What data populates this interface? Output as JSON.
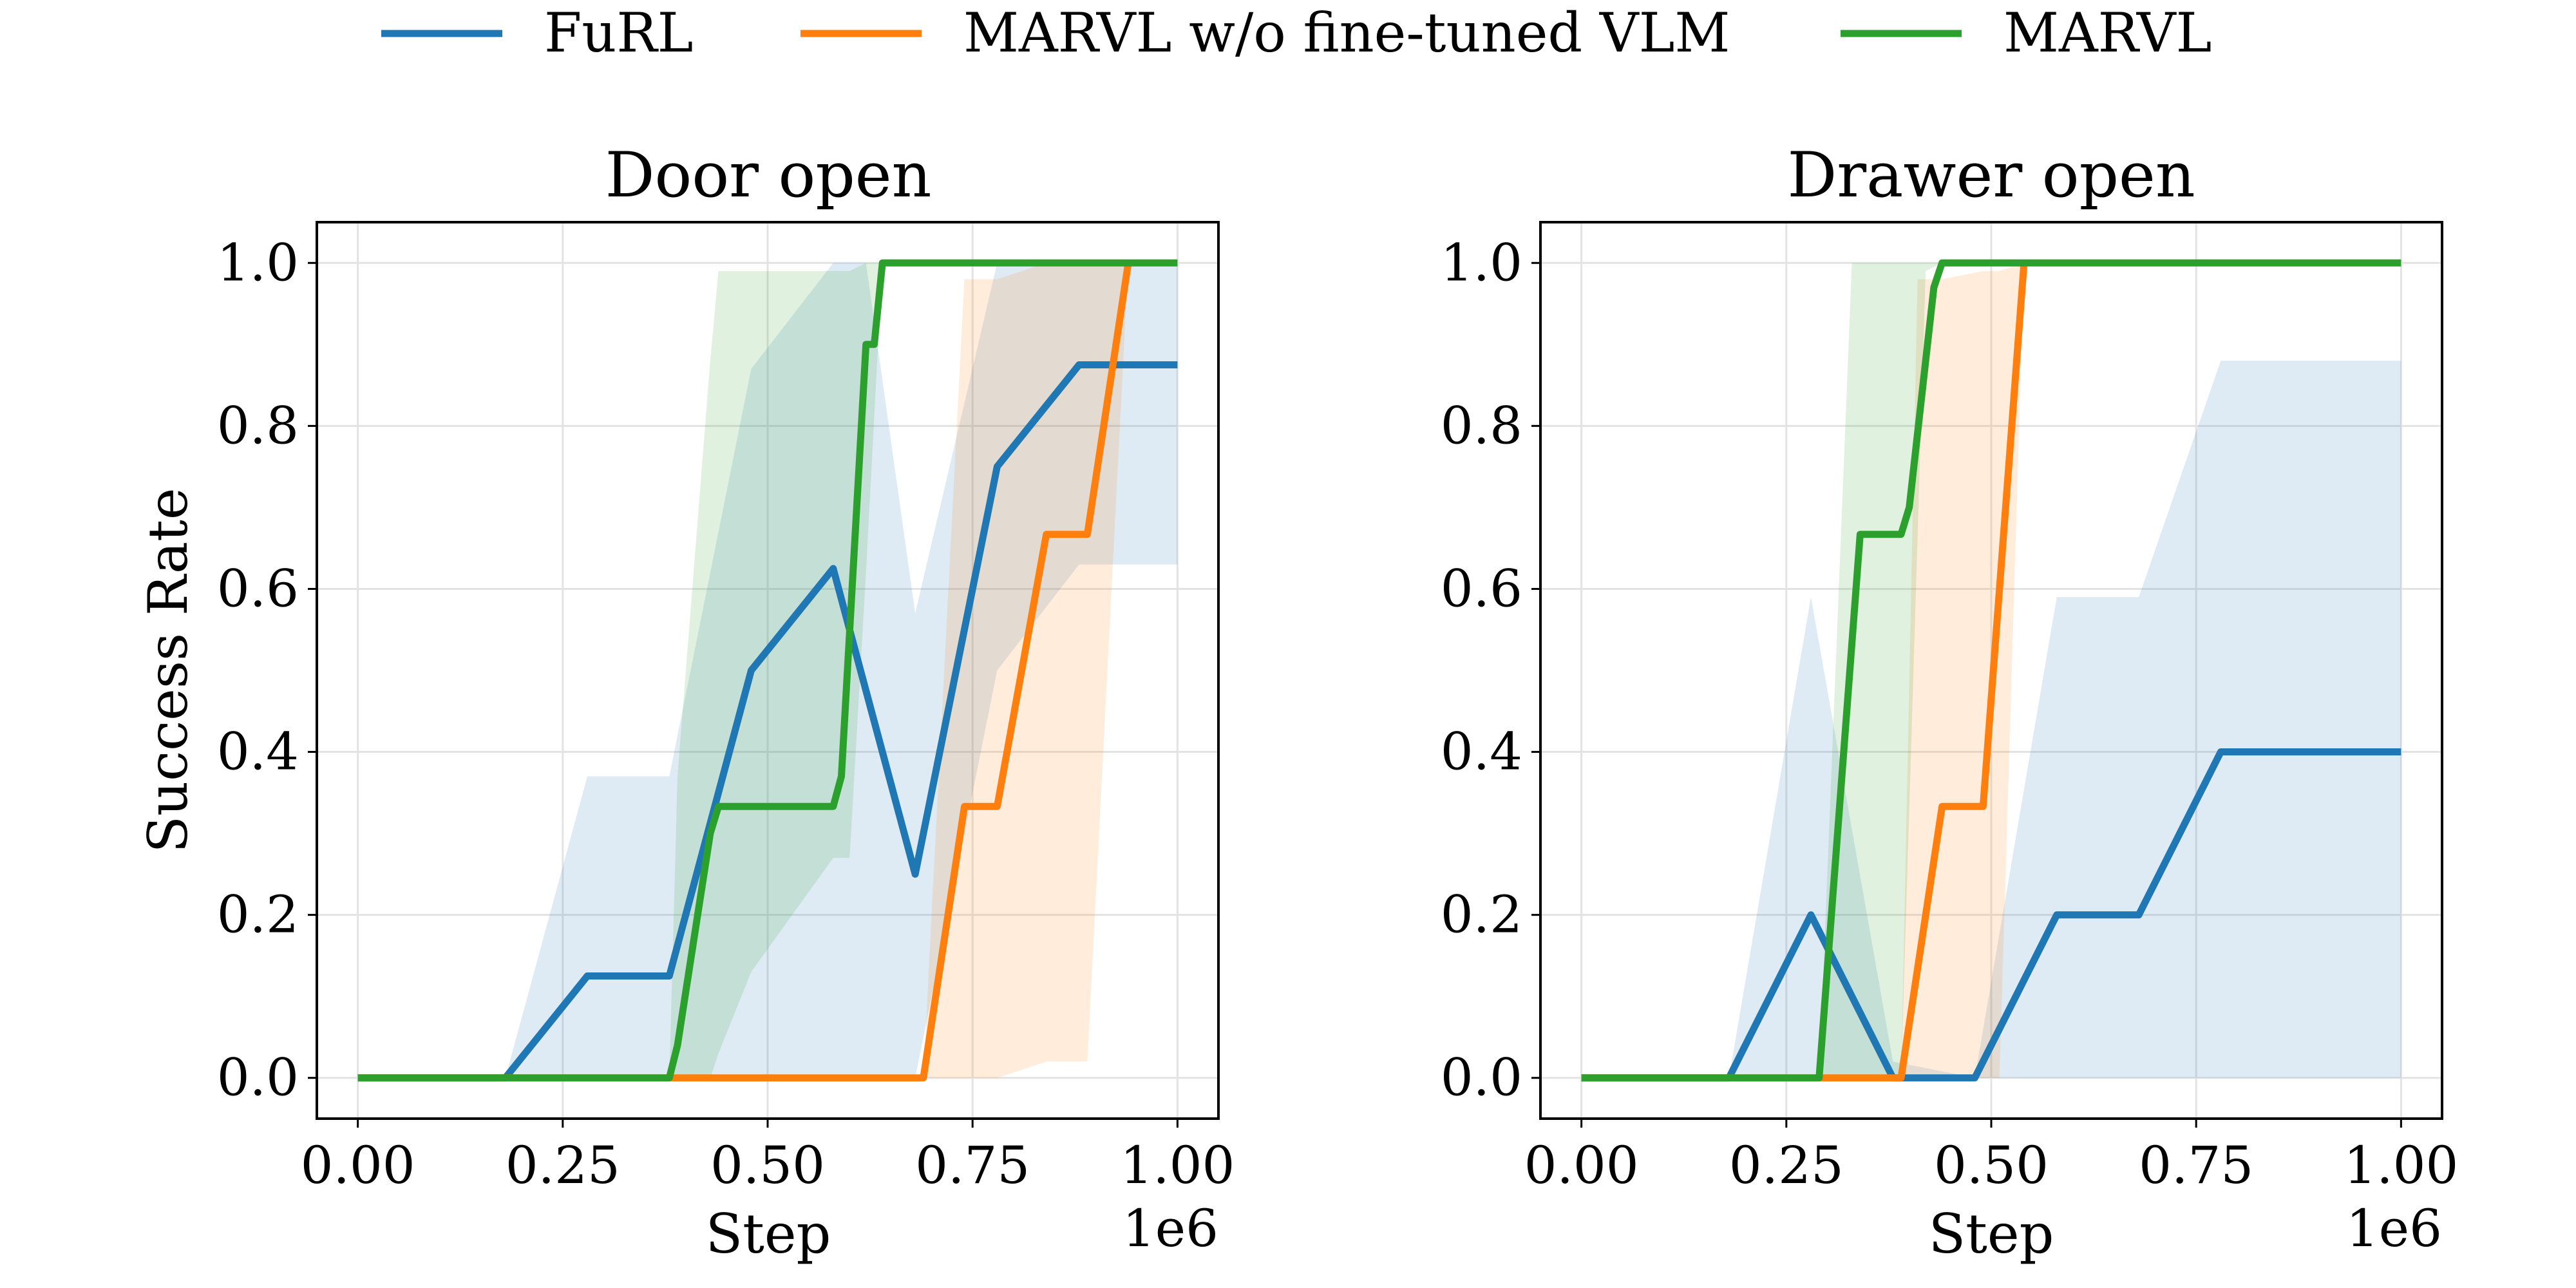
{
  "legend": {
    "placement": "top-center",
    "entries": [
      {
        "label": "FuRL",
        "color": "#1f77b4"
      },
      {
        "label": "MARVL w/o fine-tuned VLM",
        "color": "#ff7f0e"
      },
      {
        "label": "MARVL",
        "color": "#2ca02c"
      }
    ]
  },
  "chart_data": [
    {
      "type": "line",
      "title": "Door open",
      "xlabel": "Step",
      "ylabel": "Success Rate",
      "x_offset_label": "1e6",
      "xlim": [
        -0.05,
        1.05
      ],
      "ylim": [
        -0.05,
        1.05
      ],
      "xticks": [
        "0.00",
        "0.25",
        "0.50",
        "0.75",
        "1.00"
      ],
      "yticks": [
        "0.0",
        "0.2",
        "0.4",
        "0.6",
        "0.8",
        "1.0"
      ],
      "grid": true,
      "series": [
        {
          "name": "FuRL",
          "color": "#1f77b4",
          "x": [
            0,
            0.18,
            0.28,
            0.38,
            0.48,
            0.58,
            0.68,
            0.78,
            0.88,
            1.0
          ],
          "y": [
            0,
            0,
            0.125,
            0.125,
            0.5,
            0.625,
            0.25,
            0.75,
            0.875,
            0.875
          ],
          "band_x": [
            0,
            0.18,
            0.28,
            0.38,
            0.48,
            0.58,
            0.62,
            0.68,
            0.78,
            0.88,
            1.0
          ],
          "band_low": [
            0,
            0,
            0,
            0,
            0,
            0,
            0,
            0,
            0.5,
            0.63,
            0.63
          ],
          "band_high": [
            0,
            0,
            0.37,
            0.37,
            0.87,
            1.0,
            1.0,
            0.57,
            1.0,
            1.0,
            1.0
          ]
        },
        {
          "name": "MARVL w/o fine-tuned VLM",
          "color": "#ff7f0e",
          "x": [
            0,
            0.69,
            0.74,
            0.78,
            0.84,
            0.89,
            0.94
          ],
          "y": [
            0,
            0,
            0.333,
            0.333,
            0.667,
            0.667,
            1.0
          ],
          "band_x": [
            0,
            0.69,
            0.7,
            0.74,
            0.78,
            0.84,
            0.89,
            0.94
          ],
          "band_low": [
            0,
            0,
            0,
            0,
            0,
            0.02,
            0.02,
            1.0
          ],
          "band_high": [
            0,
            0,
            0.2,
            0.98,
            0.98,
            1.0,
            1.0,
            1.0
          ]
        },
        {
          "name": "MARVL",
          "color": "#2ca02c",
          "x": [
            0,
            0.38,
            0.39,
            0.43,
            0.44,
            0.48,
            0.58,
            0.59,
            0.62,
            0.63,
            0.64,
            1.0
          ],
          "y": [
            0,
            0,
            0.04,
            0.3,
            0.333,
            0.333,
            0.333,
            0.37,
            0.9,
            0.9,
            1.0,
            1.0
          ],
          "band_x": [
            0,
            0.38,
            0.39,
            0.43,
            0.44,
            0.48,
            0.58,
            0.6,
            0.62,
            0.64,
            1.0
          ],
          "band_low": [
            0,
            0,
            0,
            0,
            0.03,
            0.13,
            0.27,
            0.27,
            0.62,
            1.0,
            1.0
          ],
          "band_high": [
            0,
            0,
            0.37,
            0.88,
            0.99,
            0.99,
            0.99,
            0.99,
            1.0,
            1.0,
            1.0
          ]
        }
      ]
    },
    {
      "type": "line",
      "title": "Drawer open",
      "xlabel": "Step",
      "ylabel": "",
      "x_offset_label": "1e6",
      "xlim": [
        -0.05,
        1.05
      ],
      "ylim": [
        -0.05,
        1.05
      ],
      "xticks": [
        "0.00",
        "0.25",
        "0.50",
        "0.75",
        "1.00"
      ],
      "yticks": [
        "0.0",
        "0.2",
        "0.4",
        "0.6",
        "0.8",
        "1.0"
      ],
      "grid": true,
      "series": [
        {
          "name": "FuRL",
          "color": "#1f77b4",
          "x": [
            0,
            0.18,
            0.28,
            0.38,
            0.48,
            0.58,
            0.68,
            0.78,
            1.0
          ],
          "y": [
            0,
            0,
            0.2,
            0,
            0,
            0.2,
            0.2,
            0.4,
            0.4
          ],
          "band_x": [
            0,
            0.18,
            0.28,
            0.38,
            0.48,
            0.58,
            0.68,
            0.78,
            1.0
          ],
          "band_low": [
            0,
            0,
            0,
            0,
            0,
            0,
            0,
            0,
            0
          ],
          "band_high": [
            0,
            0,
            0.59,
            0.02,
            0,
            0.59,
            0.59,
            0.88,
            0.88
          ]
        },
        {
          "name": "MARVL w/o fine-tuned VLM",
          "color": "#ff7f0e",
          "x": [
            0,
            0.39,
            0.44,
            0.49,
            0.54
          ],
          "y": [
            0,
            0,
            0.333,
            0.333,
            1.0
          ],
          "band_x": [
            0,
            0.39,
            0.41,
            0.44,
            0.49,
            0.51,
            0.54
          ],
          "band_low": [
            0,
            0,
            0,
            0,
            0,
            0,
            1.0
          ],
          "band_high": [
            0,
            0,
            0.98,
            0.98,
            0.99,
            0.99,
            1.0
          ]
        },
        {
          "name": "MARVL",
          "color": "#2ca02c",
          "x": [
            0,
            0.29,
            0.34,
            0.39,
            0.4,
            0.43,
            0.44,
            1.0
          ],
          "y": [
            0,
            0,
            0.667,
            0.667,
            0.7,
            0.97,
            1.0,
            1.0
          ],
          "band_x": [
            0,
            0.29,
            0.33,
            0.39,
            0.42,
            0.44,
            1.0
          ],
          "band_low": [
            0,
            0,
            0,
            0,
            0.99,
            1.0,
            1.0
          ],
          "band_high": [
            0,
            0,
            1.0,
            1.0,
            1.0,
            1.0,
            1.0
          ]
        }
      ]
    }
  ]
}
